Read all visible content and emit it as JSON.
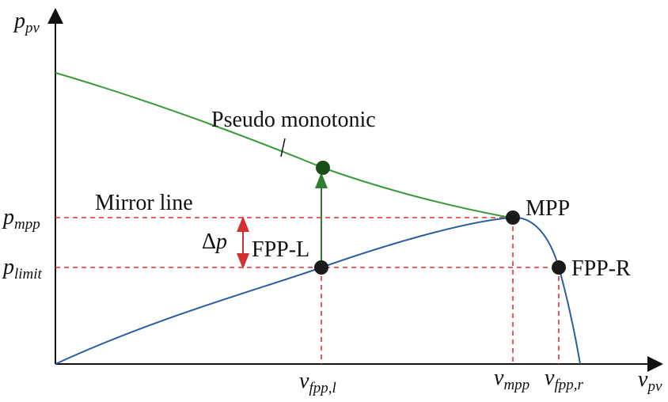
{
  "axes": {
    "y_label": {
      "symbol": "p",
      "subscript": "pv"
    },
    "x_label": {
      "symbol": "v",
      "subscript": "pv"
    }
  },
  "levels": [
    {
      "symbol": "p",
      "subscript": "mpp"
    },
    {
      "symbol": "p",
      "subscript": "limit"
    }
  ],
  "voltages": [
    {
      "symbol": "v",
      "subscript": "fpp,l"
    },
    {
      "symbol": "v",
      "subscript": "mpp"
    },
    {
      "symbol": "v",
      "subscript": "fpp,r"
    }
  ],
  "annotations": {
    "curve": "Pseudo monotonic",
    "mirror": "Mirror line",
    "delta": {
      "symbol": "Δ",
      "variable": "p"
    }
  },
  "points": [
    "FPP-L",
    "MPP",
    "FPP-R"
  ]
}
